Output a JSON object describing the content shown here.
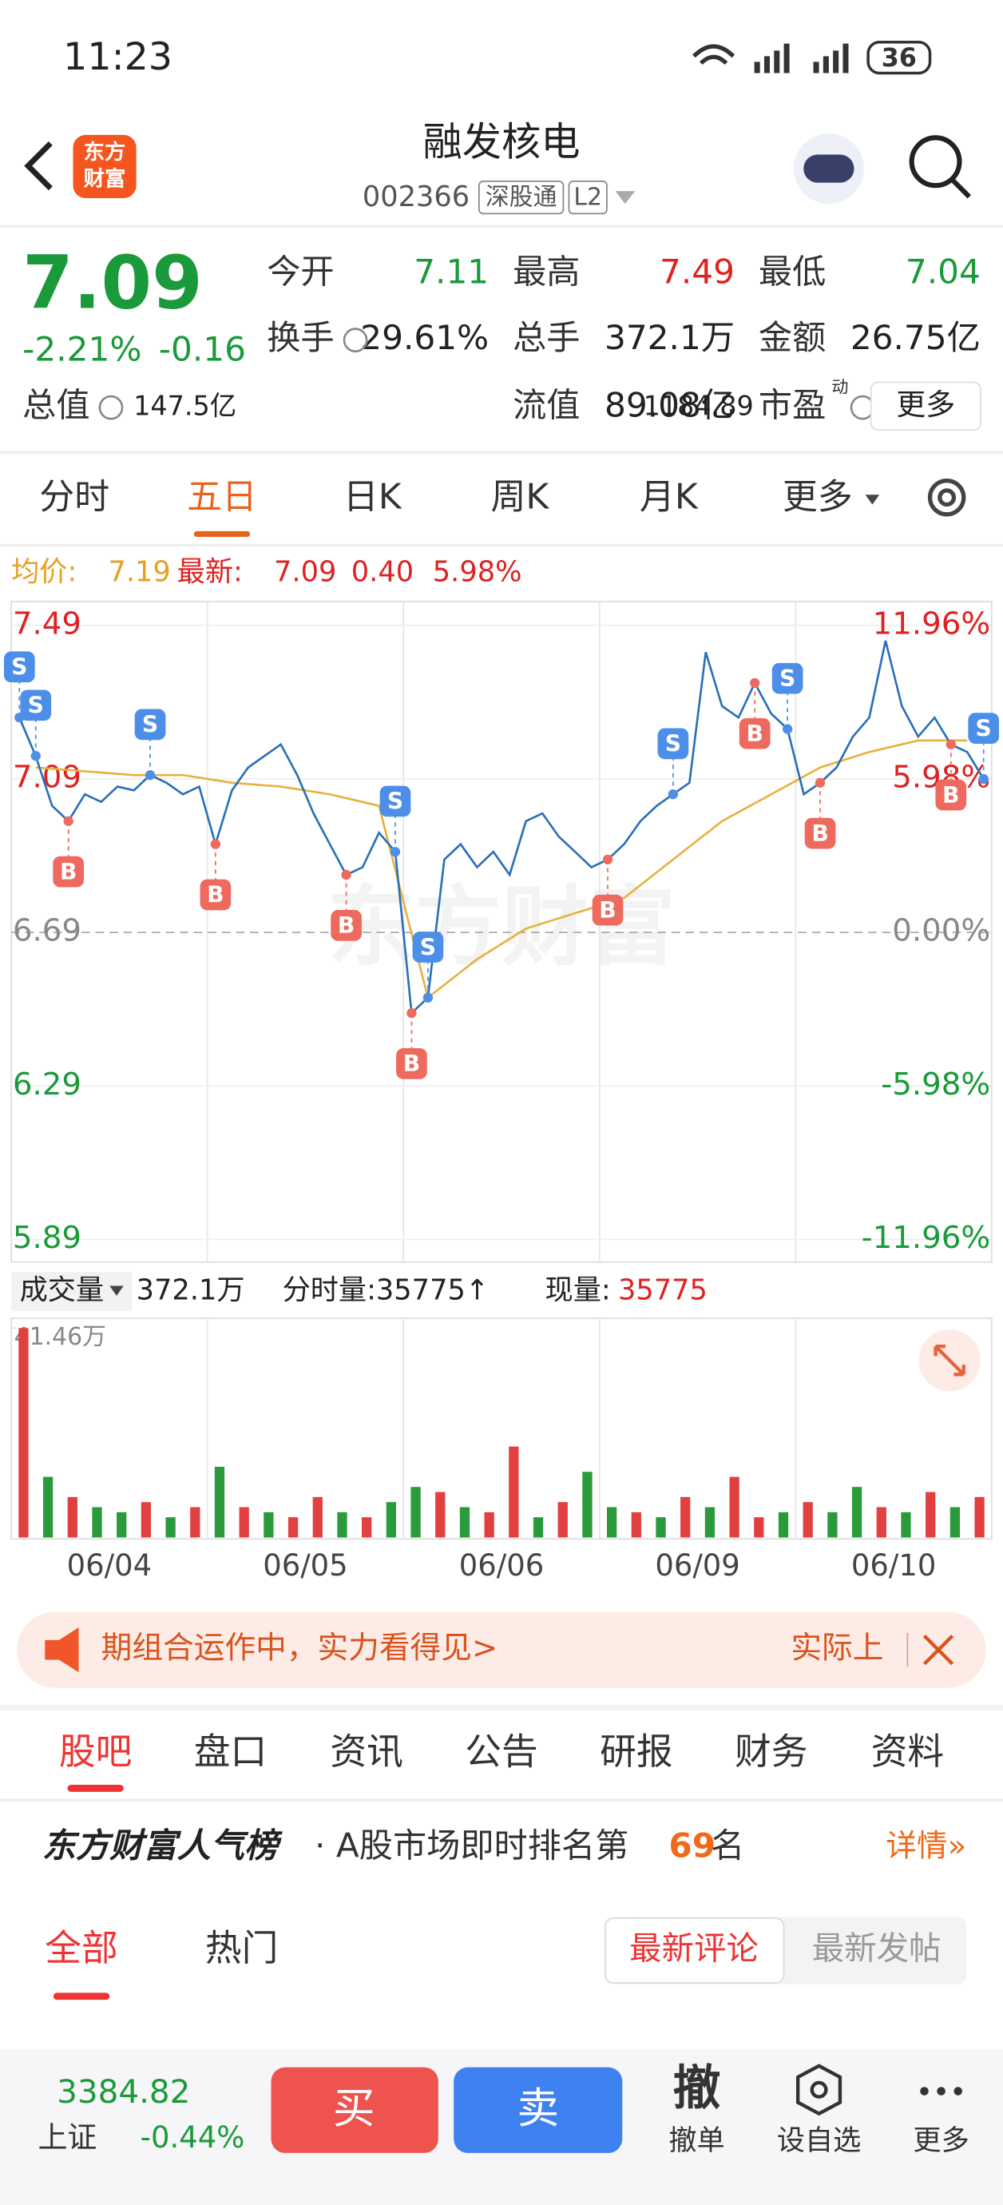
{
  "status": {
    "time": "11:23",
    "battery": "36"
  },
  "header": {
    "logo": [
      "东方",
      "财富"
    ],
    "title": "融发核电",
    "code": "002366",
    "tags": [
      "深股通",
      "L2"
    ]
  },
  "quote": {
    "price": "7.09",
    "change_pct": "-2.21%",
    "change": "-0.16",
    "fields": [
      {
        "label": "今开",
        "value": "7.11"
      },
      {
        "label": "最高",
        "value": "7.49"
      },
      {
        "label": "最低",
        "value": "7.04"
      },
      {
        "label": "换手",
        "value": "29.61%"
      },
      {
        "label": "总手",
        "value": "372.1万"
      },
      {
        "label": "金额",
        "value": "26.75亿"
      },
      {
        "label": "总值",
        "value": "147.5亿"
      },
      {
        "label": "流值",
        "value": "89.08亿"
      },
      {
        "label": "市盈",
        "sup": "动",
        "value": "1184.89"
      }
    ],
    "more": "更多"
  },
  "tabs": [
    "分时",
    "五日",
    "日K",
    "周K",
    "月K",
    "更多"
  ],
  "info": {
    "avg_label": "均价:",
    "avg": "7.19",
    "last_label": "最新:",
    "last": "7.09",
    "chg": "0.40",
    "pct": "5.98%"
  },
  "chart": {
    "type": "line",
    "watermark": "东方财富",
    "dates": [
      "06/04",
      "06/05",
      "06/06",
      "06/09",
      "06/10"
    ],
    "ylim": [
      5.89,
      7.49
    ],
    "yticks": [
      7.49,
      7.09,
      6.69,
      6.29,
      5.89
    ],
    "y2lim": [
      -11.96,
      11.96
    ],
    "y2ticks": [
      {
        "value": 11.96,
        "label": "11.96%"
      },
      {
        "value": 5.98,
        "label": "5.98%"
      },
      {
        "value": 0,
        "label": "0.00%"
      },
      {
        "value": -5.98,
        "label": "-5.98%"
      },
      {
        "value": -11.96,
        "label": "-11.96%"
      }
    ],
    "price": {
      "color": "#2a6fb8",
      "values": [
        7.25,
        7.15,
        7.02,
        6.98,
        7.05,
        7.03,
        7.07,
        7.06,
        7.1,
        7.08,
        7.05,
        7.07,
        6.92,
        7.06,
        7.12,
        7.15,
        7.18,
        7.1,
        7.0,
        6.92,
        6.84,
        6.86,
        6.95,
        6.9,
        6.48,
        6.52,
        6.88,
        6.92,
        6.86,
        6.9,
        6.84,
        6.98,
        7.0,
        6.94,
        6.9,
        6.86,
        6.88,
        6.92,
        6.98,
        7.02,
        7.05,
        7.08,
        7.42,
        7.28,
        7.25,
        7.34,
        7.26,
        7.22,
        7.05,
        7.08,
        7.12,
        7.2,
        7.25,
        7.45,
        7.28,
        7.2,
        7.25,
        7.18,
        7.16,
        7.09
      ]
    },
    "avg": {
      "color": "#e8b040",
      "values": [
        7.12,
        7.11,
        7.1,
        7.1,
        7.08,
        7.07,
        7.05,
        7.02,
        6.52,
        6.62,
        6.7,
        6.74,
        6.78,
        6.88,
        6.98,
        7.05,
        7.12,
        7.16,
        7.19,
        7.19
      ]
    },
    "markers": [
      {
        "label": "S",
        "at": 0,
        "price": 7.25
      },
      {
        "label": "S",
        "at": 1,
        "price": 7.15
      },
      {
        "label": "B",
        "at": 3,
        "price": 6.98
      },
      {
        "label": "S",
        "at": 8,
        "price": 7.1
      },
      {
        "label": "B",
        "at": 12,
        "price": 6.92
      },
      {
        "label": "B",
        "at": 20,
        "price": 6.84
      },
      {
        "label": "S",
        "at": 23,
        "price": 6.9
      },
      {
        "label": "B",
        "at": 24,
        "price": 6.48
      },
      {
        "label": "S",
        "at": 25,
        "price": 6.52
      },
      {
        "label": "B",
        "at": 36,
        "price": 6.88
      },
      {
        "label": "S",
        "at": 40,
        "price": 7.05
      },
      {
        "label": "B",
        "at": 45,
        "price": 7.34
      },
      {
        "label": "S",
        "at": 47,
        "price": 7.22
      },
      {
        "label": "B",
        "at": 49,
        "price": 7.08
      },
      {
        "label": "B",
        "at": 57,
        "price": 7.18
      },
      {
        "label": "S",
        "at": 59,
        "price": 7.09
      }
    ],
    "volume": {
      "ylim": [
        0,
        41.46
      ],
      "yticks": [
        {
          "value": 41.46,
          "label": "41.46万"
        }
      ],
      "values": [
        41.46,
        12,
        8,
        6,
        5,
        7,
        4,
        6,
        14,
        6,
        5,
        4,
        8,
        5,
        4,
        7,
        10,
        9,
        6,
        5,
        18,
        4,
        7,
        13,
        6,
        5,
        4,
        8,
        6,
        12,
        4,
        5,
        7,
        5,
        10,
        6,
        5,
        9,
        6,
        8
      ],
      "colors": [
        "#e04040",
        "#2a9a3a",
        "#e04040",
        "#2a9a3a",
        "#2a9a3a",
        "#e04040",
        "#2a9a3a",
        "#e04040",
        "#2a9a3a",
        "#e04040",
        "#2a9a3a",
        "#e04040",
        "#e04040",
        "#2a9a3a",
        "#e04040",
        "#2a9a3a",
        "#2a9a3a",
        "#e04040",
        "#2a9a3a",
        "#e04040",
        "#e04040",
        "#2a9a3a",
        "#e04040",
        "#2a9a3a",
        "#2a9a3a",
        "#e04040",
        "#2a9a3a",
        "#e04040",
        "#2a9a3a",
        "#e04040",
        "#e04040",
        "#2a9a3a",
        "#e04040",
        "#2a9a3a",
        "#2a9a3a",
        "#e04040",
        "#2a9a3a",
        "#e04040",
        "#2a9a3a",
        "#e04040"
      ]
    }
  },
  "volume_header": {
    "label": "成交量",
    "total": "372.1万",
    "tick_label": "分时量:35775↑",
    "now_label": "现量:",
    "now": "35775"
  },
  "banner": {
    "text": "期组合运作中，实力看得见>",
    "right": "实际上"
  },
  "section_tabs": [
    "股吧",
    "盘口",
    "资讯",
    "公告",
    "研报",
    "财务",
    "资料"
  ],
  "rank": {
    "brand": "东方财富人气榜",
    "text": "· A股市场即时排名第",
    "rank": "69",
    "suffix": "名",
    "detail": "详情»"
  },
  "feed_tabs": [
    "全部",
    "热门"
  ],
  "sort": [
    "最新评论",
    "最新发帖"
  ],
  "bottom": {
    "index": "3384.82",
    "index_name": "上证",
    "index_pct": "-0.44%",
    "buy": "买",
    "sell": "卖",
    "cancel_icon": "撤",
    "cancel": "撤单",
    "watch": "设自选",
    "more": "更多"
  }
}
